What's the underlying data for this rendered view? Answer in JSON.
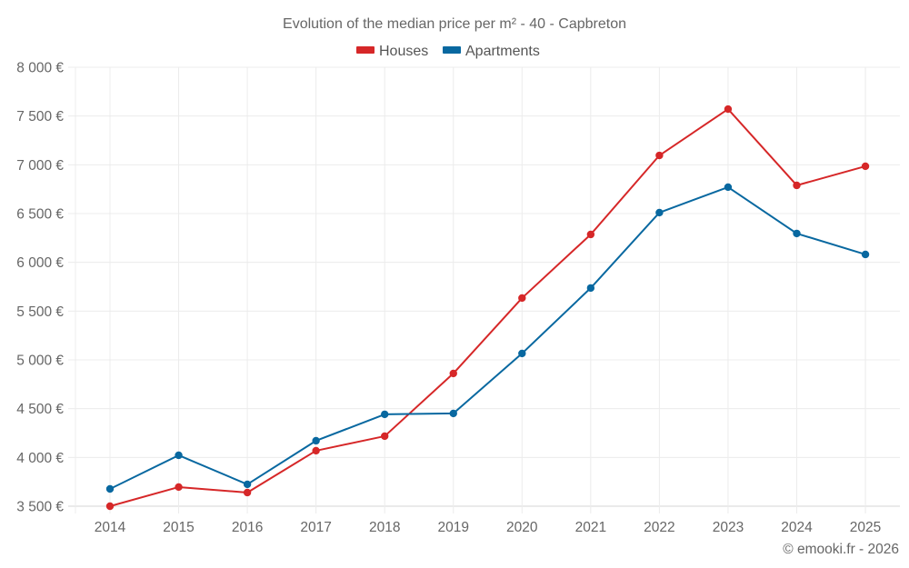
{
  "chart_data": {
    "type": "line",
    "title": "Evolution of the median price per m² - 40 - Capbreton",
    "xlabel": "",
    "ylabel": "",
    "categories": [
      "2014",
      "2015",
      "2016",
      "2017",
      "2018",
      "2019",
      "2020",
      "2021",
      "2022",
      "2023",
      "2024",
      "2025"
    ],
    "series": [
      {
        "name": "Houses",
        "color": "#d62728",
        "values": [
          3500,
          3696,
          3640,
          4069,
          4218,
          4861,
          5634,
          6286,
          7096,
          7571,
          6789,
          6985
        ]
      },
      {
        "name": "Apartments",
        "color": "#0868a0",
        "values": [
          3677,
          4022,
          3724,
          4171,
          4442,
          4451,
          5066,
          5737,
          6510,
          6771,
          6296,
          6081
        ]
      }
    ],
    "ylim": [
      3500,
      8000
    ],
    "yticks": [
      3500,
      4000,
      4500,
      5000,
      5500,
      6000,
      6500,
      7000,
      7500,
      8000
    ],
    "ytick_labels": [
      "3 500 €",
      "4 000 €",
      "4 500 €",
      "5 000 €",
      "5 500 €",
      "6 000 €",
      "6 500 €",
      "7 000 €",
      "7 500 €",
      "8 000 €"
    ],
    "grid": true,
    "legend_position": "top-center",
    "credit": "© emooki.fr - 2026"
  }
}
